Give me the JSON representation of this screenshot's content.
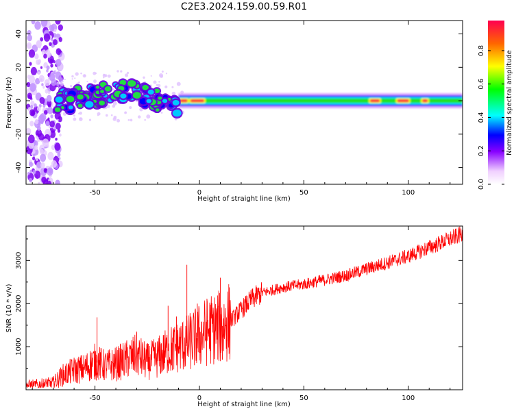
{
  "title": "C2E3.2024.159.00.59.R01",
  "chart_data": [
    {
      "type": "heatmap",
      "xlabel": "Height of straight line (km)",
      "ylabel": "Frequency (Hz)",
      "xlim": [
        -83,
        126
      ],
      "ylim": [
        -50,
        48
      ],
      "xticks": [
        -50,
        0,
        50,
        100
      ],
      "yticks": [
        -40,
        -20,
        0,
        20,
        40
      ],
      "colorbar": {
        "label": "Normalized spectral amplitude",
        "range": [
          0.0,
          0.98
        ],
        "ticks": [
          "0.0",
          "0.2",
          "0.4",
          "0.6",
          "0.8"
        ],
        "colormap": "rainbow (white-violet-blue-cyan-green-yellow-red)"
      },
      "description_values": {
        "noise_band_x": [
          -82,
          -68
        ],
        "main_band_center_hz": 0,
        "main_band_halfwidth_hz": 3,
        "strong_segments_km": [
          [
            -10,
            -5
          ],
          [
            -5,
            3
          ],
          [
            94,
            101
          ],
          [
            81,
            87
          ],
          [
            106,
            110
          ]
        ]
      }
    },
    {
      "type": "line",
      "xlabel": "Height of straight line (km)",
      "ylabel": "SNR (10 * v/v)",
      "xlim": [
        -83,
        126
      ],
      "ylim": [
        0,
        3800
      ],
      "xticks": [
        -50,
        0,
        50,
        100
      ],
      "yticks": [
        1000,
        2000,
        3000
      ],
      "series": [
        {
          "color": "#ff0000",
          "points": [
            [
              -83,
              100
            ],
            [
              -75,
              120
            ],
            [
              -70,
              150
            ],
            [
              -65,
              350
            ],
            [
              -60,
              450
            ],
            [
              -55,
              500
            ],
            [
              -50,
              650
            ],
            [
              -45,
              550
            ],
            [
              -40,
              600
            ],
            [
              -35,
              700
            ],
            [
              -30,
              800
            ],
            [
              -25,
              650
            ],
            [
              -20,
              750
            ],
            [
              -15,
              900
            ],
            [
              -10,
              1000
            ],
            [
              -5,
              1100
            ],
            [
              0,
              1250
            ],
            [
              5,
              1400
            ],
            [
              10,
              1450
            ],
            [
              15,
              1600
            ],
            [
              20,
              1850
            ],
            [
              25,
              2100
            ],
            [
              30,
              2250
            ],
            [
              40,
              2380
            ],
            [
              50,
              2450
            ],
            [
              60,
              2550
            ],
            [
              70,
              2650
            ],
            [
              80,
              2800
            ],
            [
              90,
              2950
            ],
            [
              100,
              3100
            ],
            [
              110,
              3300
            ],
            [
              120,
              3500
            ],
            [
              126,
              3620
            ]
          ],
          "spikes": [
            [
              -49,
              1680
            ],
            [
              -30,
              1350
            ],
            [
              -15,
              1950
            ],
            [
              -11,
              1700
            ],
            [
              -6,
              2900
            ],
            [
              -1,
              2000
            ],
            [
              10,
              2600
            ],
            [
              11,
              700
            ],
            [
              19,
              2000
            ],
            [
              14,
              1050
            ]
          ]
        }
      ]
    }
  ]
}
